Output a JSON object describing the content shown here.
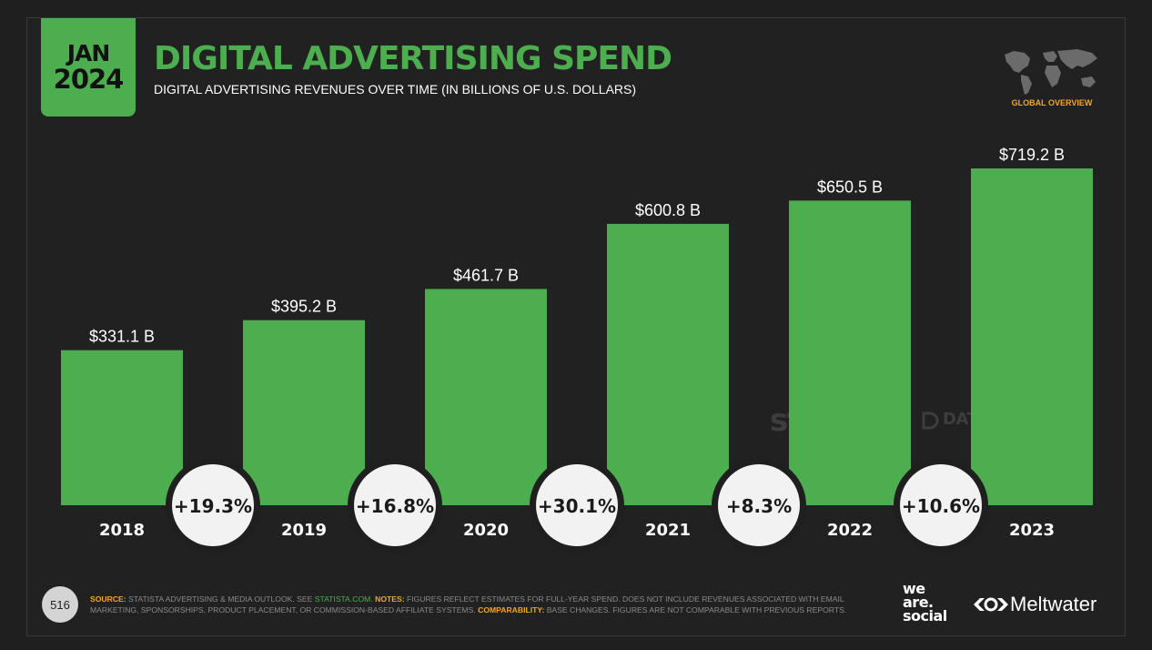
{
  "header": {
    "month": "JAN",
    "year": "2024",
    "title": "DIGITAL ADVERTISING SPEND",
    "subtitle": "DIGITAL ADVERTISING REVENUES OVER TIME (IN BILLIONS OF U.S. DOLLARS)",
    "region_label": "GLOBAL OVERVIEW"
  },
  "watermarks": {
    "statista": "statista",
    "datareportal": "DATAREPORTAL"
  },
  "footer": {
    "page_number": "516",
    "source_label": "SOURCE:",
    "source_text": "STATISTA ADVERTISING & MEDIA OUTLOOK. SEE",
    "source_link": "STATISTA.COM.",
    "notes_label": "NOTES:",
    "notes_text": "FIGURES REFLECT ESTIMATES FOR FULL-YEAR SPEND. DOES NOT INCLUDE REVENUES ASSOCIATED WITH EMAIL MARKETING, SPONSORSHIPS, PRODUCT PLACEMENT, OR COMMISSION-BASED AFFILIATE SYSTEMS.",
    "comparability_label": "COMPARABILITY:",
    "comparability_text": "BASE CHANGES. FIGURES ARE NOT COMPARABLE WITH PREVIOUS REPORTS."
  },
  "brands": {
    "was_line1": "we",
    "was_line2": "are.",
    "was_line3": "social",
    "meltwater": "Meltwater"
  },
  "colors": {
    "accent": "#4cae4f",
    "background": "#212121",
    "highlight": "#f5a623",
    "circle": "#f2f2f2"
  },
  "chart_data": {
    "type": "bar",
    "categories": [
      "2018",
      "2019",
      "2020",
      "2021",
      "2022",
      "2023"
    ],
    "values": [
      331.1,
      395.2,
      461.7,
      600.8,
      650.5,
      719.2
    ],
    "value_labels": [
      "$331.1 B",
      "$395.2 B",
      "$461.7 B",
      "$600.8 B",
      "$650.5 B",
      "$719.2 B"
    ],
    "growth_labels": [
      "+19.3%",
      "+16.8%",
      "+30.1%",
      "+8.3%",
      "+10.6%"
    ],
    "title": "DIGITAL ADVERTISING SPEND",
    "subtitle": "DIGITAL ADVERTISING REVENUES OVER TIME (IN BILLIONS OF U.S. DOLLARS)",
    "xlabel": "",
    "ylabel": "",
    "ylim": [
      0,
      719.2
    ],
    "grid": false,
    "legend": "none"
  }
}
